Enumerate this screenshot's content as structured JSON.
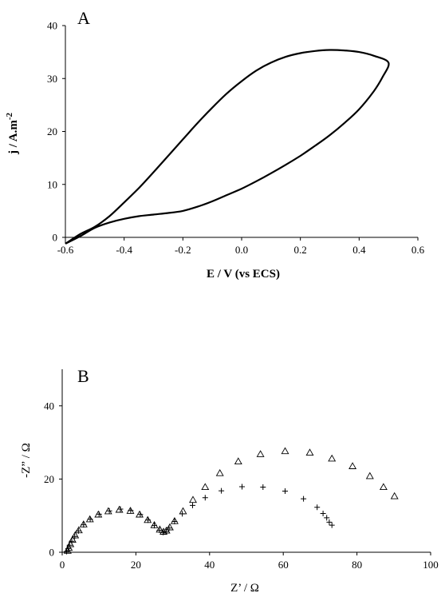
{
  "chart_data": [
    {
      "panel": "A",
      "type": "line",
      "xlabel": "E / V (vs ECS)",
      "ylabel_main": "j / A.m",
      "ylabel_sup": "-2",
      "xlim": [
        -0.6,
        0.6
      ],
      "ylim": [
        0,
        40
      ],
      "xticks": [
        "-0.6",
        "-0.4",
        "-0.2",
        "0.0",
        "0.2",
        "0.4",
        "0.6"
      ],
      "yticks": [
        "0",
        "10",
        "20",
        "30",
        "40"
      ],
      "series": [
        {
          "values_forward": [
            [
              -0.6,
              -1.2
            ],
            [
              -0.55,
              0.2
            ],
            [
              -0.5,
              1.8
            ],
            [
              -0.45,
              2.8
            ],
            [
              -0.4,
              3.5
            ],
            [
              -0.35,
              4.0
            ],
            [
              -0.3,
              4.3
            ],
            [
              -0.25,
              4.6
            ],
            [
              -0.2,
              5.0
            ],
            [
              -0.15,
              5.8
            ],
            [
              -0.1,
              6.8
            ],
            [
              -0.05,
              8.0
            ],
            [
              0.0,
              9.2
            ],
            [
              0.05,
              10.6
            ],
            [
              0.1,
              12.1
            ],
            [
              0.15,
              13.7
            ],
            [
              0.2,
              15.4
            ],
            [
              0.25,
              17.3
            ],
            [
              0.3,
              19.3
            ],
            [
              0.35,
              21.6
            ],
            [
              0.4,
              24.2
            ],
            [
              0.45,
              27.6
            ],
            [
              0.48,
              30.3
            ],
            [
              0.5,
              33.0
            ]
          ],
          "values_reverse": [
            [
              0.5,
              33.0
            ],
            [
              0.45,
              34.3
            ],
            [
              0.4,
              35.0
            ],
            [
              0.35,
              35.3
            ],
            [
              0.3,
              35.4
            ],
            [
              0.25,
              35.2
            ],
            [
              0.2,
              34.8
            ],
            [
              0.15,
              34.1
            ],
            [
              0.1,
              33.0
            ],
            [
              0.05,
              31.5
            ],
            [
              0.0,
              29.5
            ],
            [
              -0.05,
              27.2
            ],
            [
              -0.1,
              24.5
            ],
            [
              -0.15,
              21.6
            ],
            [
              -0.2,
              18.5
            ],
            [
              -0.25,
              15.4
            ],
            [
              -0.3,
              12.3
            ],
            [
              -0.35,
              9.3
            ],
            [
              -0.4,
              6.6
            ],
            [
              -0.45,
              4.0
            ],
            [
              -0.5,
              2.0
            ],
            [
              -0.55,
              0.6
            ],
            [
              -0.6,
              -1.2
            ]
          ]
        }
      ]
    },
    {
      "panel": "B",
      "type": "scatter",
      "xlabel": "Z’ / Ω",
      "ylabel": "-Z” / Ω",
      "xlim": [
        0,
        100
      ],
      "ylim": [
        0,
        50
      ],
      "xticks": [
        "0",
        "20",
        "40",
        "60",
        "80",
        "100"
      ],
      "yticks": [
        "0",
        "20",
        "40"
      ],
      "series": [
        {
          "marker": "triangle",
          "points": [
            [
              1.5,
              0.4
            ],
            [
              1.8,
              1.2
            ],
            [
              2.2,
              2.2
            ],
            [
              2.8,
              3.4
            ],
            [
              3.5,
              4.6
            ],
            [
              4.5,
              6.0
            ],
            [
              5.8,
              7.6
            ],
            [
              7.5,
              9.0
            ],
            [
              9.8,
              10.3
            ],
            [
              12.5,
              11.2
            ],
            [
              15.5,
              11.6
            ],
            [
              18.5,
              11.3
            ],
            [
              21.0,
              10.3
            ],
            [
              23.2,
              8.8
            ],
            [
              25.0,
              7.4
            ],
            [
              26.5,
              6.2
            ],
            [
              27.5,
              5.6
            ],
            [
              28.3,
              5.9
            ],
            [
              29.2,
              6.8
            ],
            [
              30.5,
              8.5
            ],
            [
              32.8,
              11.2
            ],
            [
              35.5,
              14.3
            ],
            [
              38.8,
              17.8
            ],
            [
              42.8,
              21.6
            ],
            [
              47.8,
              24.8
            ],
            [
              53.8,
              26.8
            ],
            [
              60.5,
              27.6
            ],
            [
              67.2,
              27.2
            ],
            [
              73.2,
              25.6
            ],
            [
              78.8,
              23.5
            ],
            [
              83.5,
              20.8
            ],
            [
              87.2,
              17.8
            ],
            [
              90.2,
              15.3
            ]
          ]
        },
        {
          "marker": "plus",
          "points": [
            [
              1.2,
              0.2
            ],
            [
              1.6,
              1.0
            ],
            [
              2.0,
              1.9
            ],
            [
              2.6,
              3.0
            ],
            [
              3.4,
              4.3
            ],
            [
              4.4,
              5.8
            ],
            [
              5.8,
              7.5
            ],
            [
              7.6,
              9.0
            ],
            [
              10.0,
              10.4
            ],
            [
              12.8,
              11.3
            ],
            [
              15.8,
              11.8
            ],
            [
              18.6,
              11.4
            ],
            [
              21.2,
              10.3
            ],
            [
              23.3,
              8.8
            ],
            [
              25.0,
              7.3
            ],
            [
              26.4,
              6.0
            ],
            [
              27.4,
              5.4
            ],
            [
              28.2,
              5.6
            ],
            [
              29.0,
              6.6
            ],
            [
              30.5,
              8.4
            ],
            [
              32.6,
              10.5
            ],
            [
              35.4,
              12.8
            ],
            [
              38.8,
              14.9
            ],
            [
              43.2,
              16.8
            ],
            [
              48.8,
              17.9
            ],
            [
              54.5,
              17.8
            ],
            [
              60.5,
              16.7
            ],
            [
              65.5,
              14.6
            ],
            [
              69.2,
              12.3
            ],
            [
              70.8,
              10.6
            ],
            [
              71.8,
              9.4
            ],
            [
              72.5,
              8.2
            ],
            [
              73.2,
              7.4
            ]
          ]
        }
      ]
    }
  ],
  "panel_a_label": "A",
  "panel_b_label": "B"
}
